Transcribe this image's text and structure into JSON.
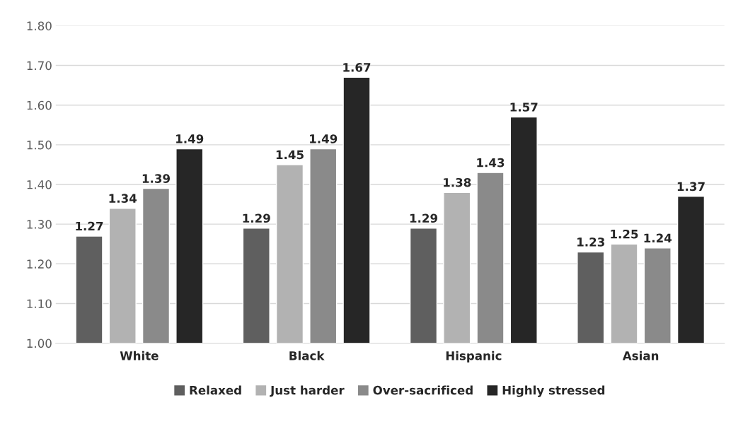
{
  "chart_data": {
    "type": "bar",
    "categories": [
      "White",
      "Black",
      "Hispanic",
      "Asian"
    ],
    "series": [
      {
        "name": "Relaxed",
        "color": "#5f5f5f",
        "values": [
          1.27,
          1.29,
          1.29,
          1.23
        ]
      },
      {
        "name": "Just harder",
        "color": "#b2b2b2",
        "values": [
          1.34,
          1.45,
          1.38,
          1.25
        ]
      },
      {
        "name": "Over-sacrificed",
        "color": "#8a8a8a",
        "values": [
          1.39,
          1.49,
          1.43,
          1.24
        ]
      },
      {
        "name": "Highly stressed",
        "color": "#262626",
        "values": [
          1.49,
          1.67,
          1.57,
          1.37
        ]
      }
    ],
    "ylim": [
      1.0,
      1.8
    ],
    "yticks": [
      {
        "value": 1.0,
        "label": "1.00"
      },
      {
        "value": 1.1,
        "label": "1.10"
      },
      {
        "value": 1.2,
        "label": "1.20"
      },
      {
        "value": 1.3,
        "label": "1.30"
      },
      {
        "value": 1.4,
        "label": "1.40"
      },
      {
        "value": 1.5,
        "label": "1.50"
      },
      {
        "value": 1.6,
        "label": "1.60"
      },
      {
        "value": 1.7,
        "label": "1.70"
      },
      {
        "value": 1.8,
        "label": "1.80"
      }
    ],
    "grid": "y",
    "legend": "bottom",
    "data_labels": true
  }
}
